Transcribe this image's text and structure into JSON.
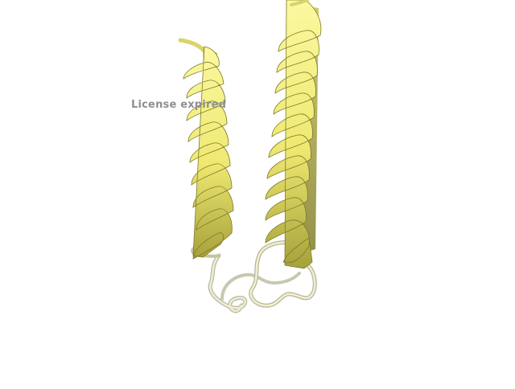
{
  "overlay": {
    "watermark_text": "License expired"
  },
  "scene": {
    "background_color": "#ffffff",
    "helix_color": "#f3f07a",
    "helix_shadow_color": "#8f8b2f",
    "loop_color": "#e6e6c8",
    "loop_shadow_color": "#a3a394"
  }
}
